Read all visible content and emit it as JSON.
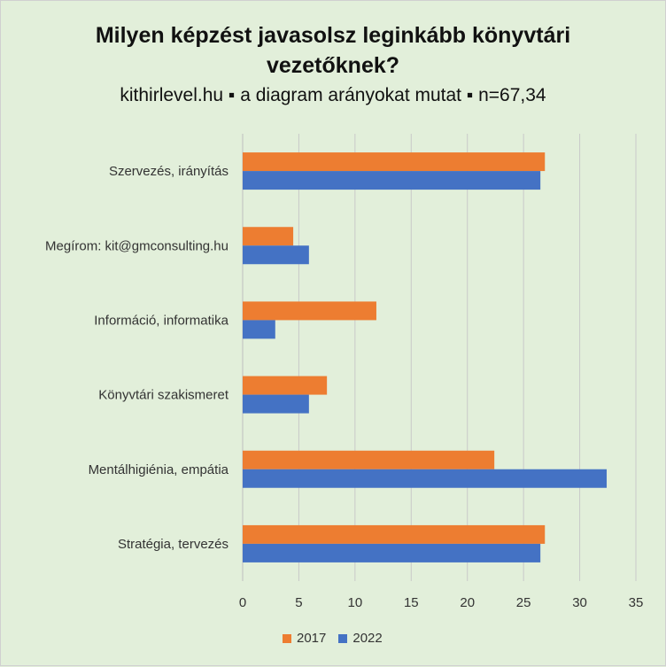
{
  "chart_data": {
    "type": "bar",
    "orientation": "horizontal",
    "title_lines": [
      "Milyen képzést javasolsz leginkább könyvtári",
      "vezetőknek?"
    ],
    "subtitle": "kithirlevel.hu ▪ a diagram arányokat mutat ▪ n=67,34",
    "categories": [
      "Szervezés, irányítás",
      "Megírom: kit@gmconsulting.hu",
      "Információ, informatika",
      "Könyvtári szakismeret",
      "Mentálhigiénia, empátia",
      "Stratégia, tervezés"
    ],
    "series": [
      {
        "name": "2017",
        "color": "#ed7d31",
        "values": [
          26.9,
          4.5,
          11.9,
          7.5,
          22.4,
          26.9
        ]
      },
      {
        "name": "2022",
        "color": "#4472c4",
        "values": [
          26.5,
          5.9,
          2.9,
          5.9,
          32.4,
          26.5
        ]
      }
    ],
    "xlim": [
      0,
      35
    ],
    "xticks": [
      0,
      5,
      10,
      15,
      20,
      25,
      30,
      35
    ],
    "grid": "vertical",
    "legend": "bottom-center"
  }
}
